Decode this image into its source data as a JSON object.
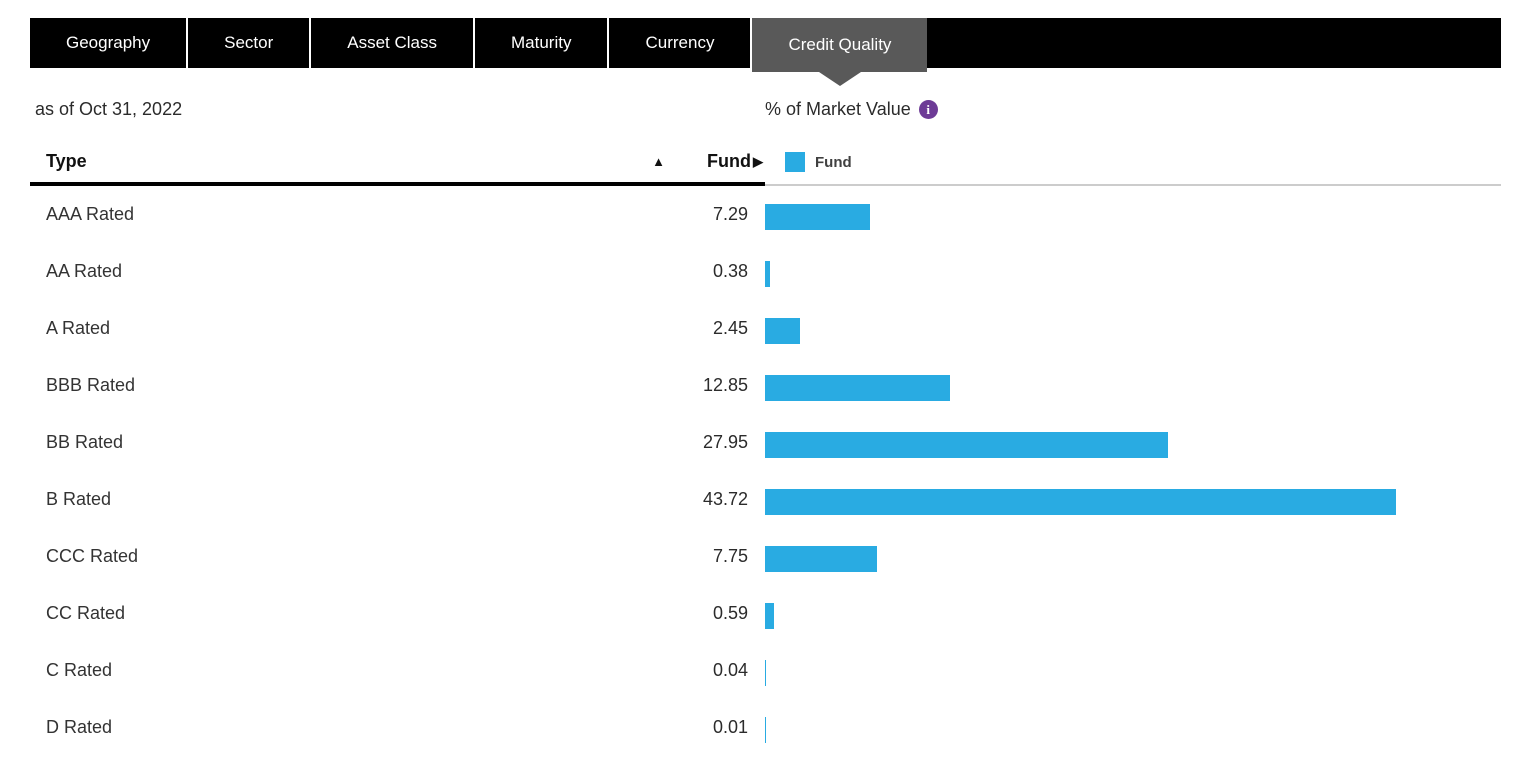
{
  "tabs": {
    "items": [
      {
        "label": "Geography",
        "active": false
      },
      {
        "label": "Sector",
        "active": false
      },
      {
        "label": "Asset Class",
        "active": false
      },
      {
        "label": "Maturity",
        "active": false
      },
      {
        "label": "Currency",
        "active": false
      },
      {
        "label": "Credit Quality",
        "active": true
      }
    ]
  },
  "meta": {
    "as_of": "as of Oct 31, 2022",
    "value_basis": "% of Market Value"
  },
  "table": {
    "type_header": "Type",
    "fund_header": "Fund"
  },
  "legend": {
    "label": "Fund"
  },
  "icons": {
    "sort_ascending": "▲",
    "expand": "▶",
    "info": "i"
  },
  "colors": {
    "bar_blue": "#29abe2",
    "info_purple": "#6d3b96",
    "active_tab_gray": "#595959",
    "tab_black": "#000000"
  },
  "chart_data": {
    "type": "bar",
    "orientation": "horizontal",
    "title": "% of Market Value",
    "as_of": "Oct 31, 2022",
    "categories": [
      "AAA Rated",
      "AA Rated",
      "A Rated",
      "BBB Rated",
      "BB Rated",
      "B Rated",
      "CCC Rated",
      "CC Rated",
      "C Rated",
      "D Rated"
    ],
    "series": [
      {
        "name": "Fund",
        "values": [
          7.29,
          0.38,
          2.45,
          12.85,
          27.95,
          43.72,
          7.75,
          0.59,
          0.04,
          0.01
        ]
      }
    ],
    "xlim": [
      0,
      51
    ],
    "bar_color": "#29abe2",
    "legend_position": "top-left",
    "grid": false,
    "value_decimals": 2
  }
}
